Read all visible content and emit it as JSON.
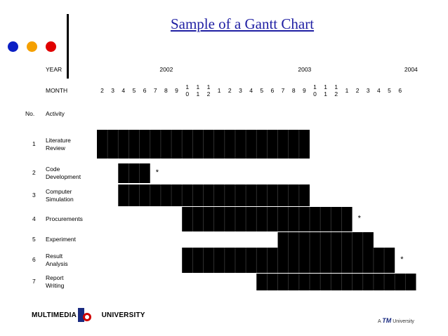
{
  "title": "Sample of a Gantt Chart",
  "dots": [
    {
      "name": "blue-dot",
      "color": "#0b1fc4"
    },
    {
      "name": "orange-dot",
      "color": "#f5a000"
    },
    {
      "name": "red-dot",
      "color": "#e00000"
    }
  ],
  "header": {
    "year_label": "YEAR",
    "month_label": "MONTH",
    "no_label": "No.",
    "activity_label": "Activity"
  },
  "chart_data": {
    "type": "gantt",
    "years": [
      {
        "label": "2002",
        "month_index": 6
      },
      {
        "label": "2003",
        "month_index": 19
      },
      {
        "label": "2004",
        "month_index": 29
      }
    ],
    "months": [
      "2",
      "3",
      "4",
      "5",
      "6",
      "7",
      "8",
      "9",
      "10",
      "11",
      "12",
      "1",
      "2",
      "3",
      "4",
      "5",
      "6",
      "7",
      "8",
      "9",
      "10",
      "11",
      "12",
      "1",
      "2",
      "3",
      "4",
      "5",
      "6"
    ],
    "activities": [
      {
        "no": "1",
        "name": "Literature Review",
        "start": 0,
        "end": 20
      },
      {
        "no": "2",
        "name": "Code Development",
        "start": 2,
        "end": 5,
        "marker": "*"
      },
      {
        "no": "3",
        "name": "Computer Simulation",
        "start": 2,
        "end": 20
      },
      {
        "no": "4",
        "name": "Procurements",
        "start": 8,
        "end": 24,
        "marker": "*"
      },
      {
        "no": "5",
        "name": "Experiment",
        "start": 17,
        "end": 26
      },
      {
        "no": "6",
        "name": "Result Analysis",
        "start": 8,
        "end": 28,
        "marker": "*"
      },
      {
        "no": "7",
        "name": "Report Writing",
        "start": 15,
        "end": 30
      }
    ]
  },
  "footer": {
    "left_logo_text_1": "MULTIMEDIA",
    "left_logo_text_2": "UNIVERSITY",
    "right_logo_prefix": "A",
    "right_logo_brand": "TM",
    "right_logo_suffix": "University"
  }
}
